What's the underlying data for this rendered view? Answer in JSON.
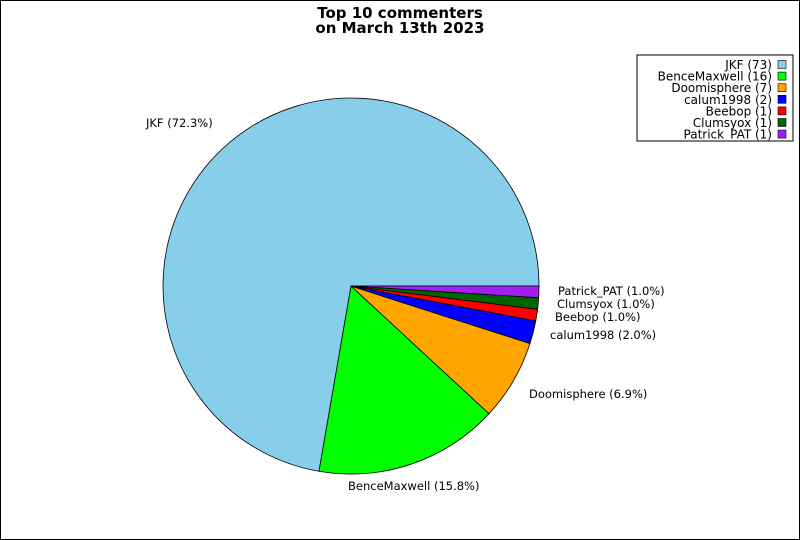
{
  "chart_data": {
    "type": "pie",
    "title": "Top 10 commenters",
    "subtitle": "on March 13th 2023",
    "legend_position": "top-right",
    "slices": [
      {
        "name": "JKF",
        "count": 73,
        "percent": 72.3,
        "color": "#87CEEB",
        "label": "JKF (72.3%)",
        "legend": "JKF (73)"
      },
      {
        "name": "BenceMaxwell",
        "count": 16,
        "percent": 15.8,
        "color": "#00FF00",
        "label": "BenceMaxwell (15.8%)",
        "legend": "BenceMaxwell (16)"
      },
      {
        "name": "Doomisphere",
        "count": 7,
        "percent": 6.9,
        "color": "#FFA500",
        "label": "Doomisphere (6.9%)",
        "legend": "Doomisphere (7)"
      },
      {
        "name": "calum1998",
        "count": 2,
        "percent": 2.0,
        "color": "#0000FF",
        "label": "calum1998 (2.0%)",
        "legend": "calum1998 (2)"
      },
      {
        "name": "Beebop",
        "count": 1,
        "percent": 1.0,
        "color": "#FF0000",
        "label": "Beebop (1.0%)",
        "legend": "Beebop (1)"
      },
      {
        "name": "Clumsyox",
        "count": 1,
        "percent": 1.0,
        "color": "#006400",
        "label": "Clumsyox (1.0%)",
        "legend": "Clumsyox (1)"
      },
      {
        "name": "Patrick_PAT",
        "count": 1,
        "percent": 1.0,
        "color": "#A020F0",
        "label": "Patrick_PAT (1.0%)",
        "legend": "Patrick_PAT (1)"
      }
    ]
  }
}
